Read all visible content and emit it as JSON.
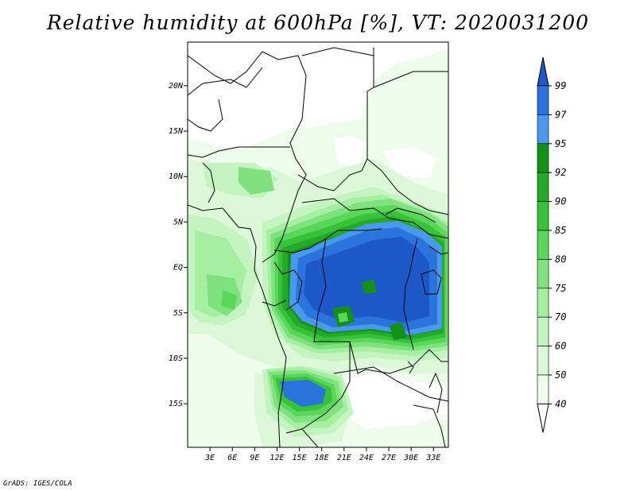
{
  "title": "Relative humidity at 600hPa [%], VT: 2020031200",
  "footer": "GrADS: IGES/COLA",
  "map": {
    "lat_labels": [
      "20N",
      "15N",
      "10N",
      "5N",
      "EQ",
      "5S",
      "10S",
      "15S"
    ],
    "lat_values": [
      20,
      15,
      10,
      5,
      0,
      -5,
      -10,
      -15
    ],
    "lon_labels": [
      "3E",
      "6E",
      "9E",
      "12E",
      "15E",
      "18E",
      "21E",
      "24E",
      "27E",
      "30E",
      "33E"
    ],
    "lon_values": [
      3,
      6,
      9,
      12,
      15,
      18,
      21,
      24,
      27,
      30,
      33
    ],
    "lon_range": [
      0,
      35
    ],
    "lat_range": [
      -19.8,
      24.8
    ]
  },
  "colorbar": {
    "labels": [
      "99",
      "97",
      "95",
      "92",
      "90",
      "85",
      "80",
      "75",
      "70",
      "60",
      "50",
      "40"
    ],
    "colors": [
      "#1d58c8",
      "#2a74dc",
      "#4a99ec",
      "#139016",
      "#23aa2a",
      "#38c23a",
      "#5ad65a",
      "#80e27e",
      "#a6eea2",
      "#c4f4c0",
      "#dcf8d8",
      "#eefcec",
      "#ffffff"
    ]
  }
}
